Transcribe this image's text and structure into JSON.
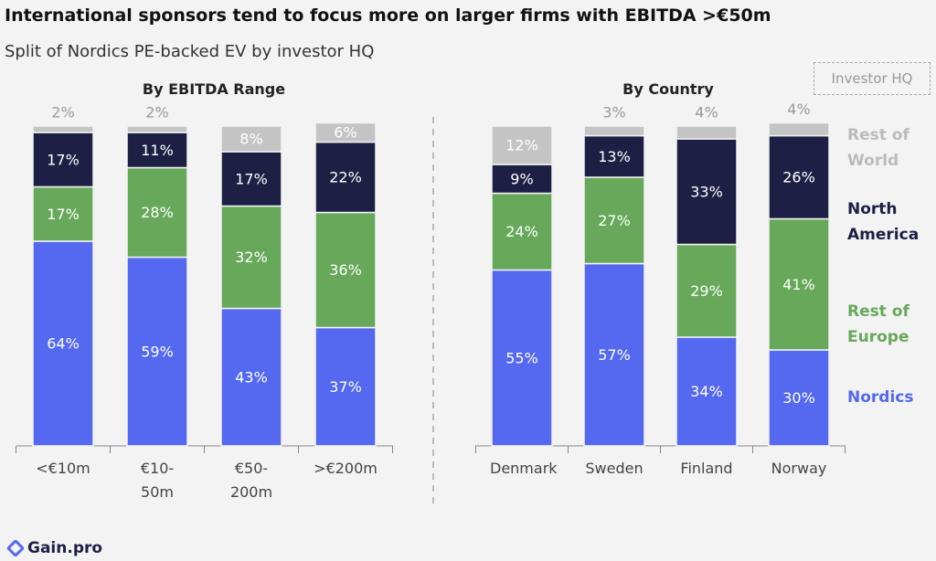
{
  "title": "International sponsors tend to focus more on larger firms with EBITDA >€50m",
  "subtitle": "Split of Nordics PE-backed EV by investor HQ",
  "legend_title": "Investor HQ",
  "logo": "Gain.pro",
  "chart_data": [
    {
      "type": "bar",
      "stacked": true,
      "title": "By EBITDA Range",
      "categories": [
        "<€10m",
        "€10-50m",
        "€50-200m",
        ">€200m"
      ],
      "ylim": [
        0,
        100
      ],
      "series": [
        {
          "name": "Nordics",
          "color": "#5468f0",
          "values": [
            64,
            59,
            43,
            37
          ],
          "value_labels": [
            "64%",
            "59%",
            "43%",
            "37%"
          ]
        },
        {
          "name": "Rest of Europe",
          "color": "#67a85a",
          "values": [
            17,
            28,
            32,
            36
          ],
          "value_labels": [
            "17%",
            "28%",
            "32%",
            "36%"
          ]
        },
        {
          "name": "North America",
          "color": "#1d2044",
          "values": [
            17,
            11,
            17,
            22
          ],
          "value_labels": [
            "17%",
            "11%",
            "17%",
            "22%"
          ]
        },
        {
          "name": "Rest of World",
          "color": "#c4c4c4",
          "values": [
            2,
            2,
            8,
            6
          ],
          "value_labels": [
            "2%",
            "2%",
            "8%",
            "6%"
          ]
        }
      ]
    },
    {
      "type": "bar",
      "stacked": true,
      "title": "By Country",
      "legend": "right",
      "categories": [
        "Denmark",
        "Sweden",
        "Finland",
        "Norway"
      ],
      "ylim": [
        0,
        100
      ],
      "series": [
        {
          "name": "Nordics",
          "color": "#5468f0",
          "values": [
            55,
            57,
            34,
            30
          ],
          "value_labels": [
            "55%",
            "57%",
            "34%",
            "30%"
          ]
        },
        {
          "name": "Rest of Europe",
          "color": "#67a85a",
          "values": [
            24,
            27,
            29,
            41
          ],
          "value_labels": [
            "24%",
            "27%",
            "29%",
            "41%"
          ]
        },
        {
          "name": "North America",
          "color": "#1d2044",
          "values": [
            9,
            13,
            33,
            26
          ],
          "value_labels": [
            "9%",
            "13%",
            "33%",
            "26%"
          ]
        },
        {
          "name": "Rest of World",
          "color": "#c4c4c4",
          "values": [
            12,
            3,
            4,
            4
          ],
          "value_labels": [
            "12%",
            "3%",
            "4%",
            "4%"
          ]
        }
      ]
    }
  ]
}
